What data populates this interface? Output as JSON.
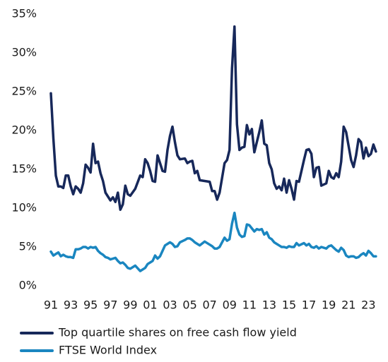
{
  "chart_data": {
    "type": "line",
    "x": [
      1991.0,
      1991.25,
      1991.5,
      1991.75,
      1992.0,
      1992.25,
      1992.5,
      1992.75,
      1993.0,
      1993.25,
      1993.5,
      1993.75,
      1994.0,
      1994.25,
      1994.5,
      1994.75,
      1995.0,
      1995.25,
      1995.5,
      1995.75,
      1996.0,
      1996.25,
      1996.5,
      1996.75,
      1997.0,
      1997.25,
      1997.5,
      1997.75,
      1998.0,
      1998.25,
      1998.5,
      1998.75,
      1999.0,
      1999.5,
      2000.0,
      2000.25,
      2000.5,
      2000.75,
      2001.0,
      2001.25,
      2001.5,
      2001.75,
      2002.0,
      2002.25,
      2002.5,
      2002.75,
      2003.0,
      2003.25,
      2003.5,
      2003.75,
      2004.0,
      2004.5,
      2004.75,
      2005.0,
      2005.25,
      2005.5,
      2005.75,
      2006.0,
      2006.5,
      2007.0,
      2007.25,
      2007.5,
      2007.75,
      2008.0,
      2008.5,
      2008.75,
      2009.0,
      2009.25,
      2009.5,
      2009.75,
      2010.0,
      2010.25,
      2010.5,
      2010.75,
      2011.0,
      2011.25,
      2011.5,
      2011.75,
      2012.0,
      2012.25,
      2012.5,
      2012.75,
      2013.0,
      2013.25,
      2013.5,
      2013.75,
      2014.0,
      2014.25,
      2014.5,
      2014.75,
      2015.0,
      2015.25,
      2015.5,
      2015.75,
      2016.0,
      2016.5,
      2016.75,
      2017.0,
      2017.25,
      2017.5,
      2017.75,
      2018.0,
      2018.25,
      2018.75,
      2019.0,
      2019.25,
      2019.5,
      2019.75,
      2020.0,
      2020.25,
      2020.5,
      2020.75,
      2021.0,
      2021.25,
      2021.5,
      2021.75,
      2022.0,
      2022.25,
      2022.5,
      2022.75,
      2023.0,
      2023.25,
      2023.5,
      2023.75
    ],
    "series": [
      {
        "name": "Top quartile shares on free cash flow yield",
        "color": "#17285a",
        "values": [
          24.8,
          19,
          14.2,
          12.8,
          12.8,
          12.6,
          14.2,
          14.2,
          12.8,
          11.8,
          12.8,
          12.5,
          12.0,
          13.2,
          15.6,
          15.2,
          14.6,
          18.3,
          15.8,
          16.0,
          14.5,
          13.5,
          12.0,
          11.5,
          11.0,
          11.4,
          10.8,
          12.0,
          9.8,
          10.5,
          12.9,
          11.8,
          11.6,
          12.5,
          14.2,
          14.0,
          16.3,
          15.8,
          14.8,
          13.5,
          13.4,
          16.8,
          15.8,
          14.8,
          14.7,
          17.5,
          19.3,
          20.5,
          18.5,
          16.8,
          16.3,
          16.4,
          15.8,
          16.0,
          16.1,
          14.5,
          14.8,
          13.6,
          13.5,
          13.4,
          12.2,
          12.2,
          11.1,
          12.0,
          15.8,
          16.2,
          17.5,
          28,
          33.4,
          20.8,
          17.5,
          17.8,
          17.9,
          20.7,
          19.5,
          20.2,
          17.2,
          18.5,
          19.8,
          21.3,
          18.3,
          18.1,
          15.8,
          15.0,
          13.2,
          12.5,
          12.8,
          12.3,
          13.8,
          12.0,
          13.6,
          12.5,
          11.1,
          13.5,
          13.4,
          16.2,
          17.5,
          17.6,
          17.0,
          14.0,
          15.2,
          15.3,
          12.9,
          13.2,
          14.8,
          14.0,
          13.8,
          14.5,
          14.0,
          16.0,
          20.5,
          19.8,
          18.0,
          16.2,
          15.3,
          16.8,
          18.9,
          18.5,
          16.4,
          17.8,
          16.7,
          17.0,
          18.2,
          17.3
        ]
      },
      {
        "name": "FTSE World Index",
        "color": "#1a86c0",
        "values": [
          4.4,
          3.9,
          4.1,
          4.3,
          3.8,
          4.0,
          3.8,
          3.7,
          3.7,
          3.6,
          4.7,
          4.7,
          4.8,
          5.0,
          5.0,
          4.8,
          5.0,
          4.9,
          5.0,
          4.5,
          4.2,
          4.0,
          3.7,
          3.6,
          3.4,
          3.5,
          3.6,
          3.2,
          2.9,
          3.0,
          2.7,
          2.3,
          2.2,
          2.6,
          1.9,
          2.1,
          2.3,
          2.8,
          3.0,
          3.2,
          3.9,
          3.5,
          3.8,
          4.5,
          5.2,
          5.4,
          5.6,
          5.4,
          5.0,
          5.1,
          5.6,
          5.9,
          6.1,
          6.1,
          5.9,
          5.6,
          5.4,
          5.2,
          5.7,
          5.3,
          5.1,
          4.8,
          4.8,
          5.0,
          6.2,
          5.8,
          6.0,
          8.0,
          9.4,
          7.5,
          6.6,
          6.3,
          6.4,
          7.9,
          7.8,
          7.4,
          7.0,
          7.3,
          7.2,
          7.3,
          6.6,
          6.9,
          6.2,
          6.0,
          5.6,
          5.4,
          5.2,
          5.0,
          5.0,
          4.9,
          5.1,
          5.0,
          5.0,
          5.5,
          5.2,
          5.5,
          5.2,
          5.4,
          5.0,
          4.9,
          5.1,
          4.8,
          5.0,
          4.8,
          5.1,
          5.2,
          4.9,
          4.6,
          4.4,
          4.9,
          4.6,
          3.9,
          3.7,
          3.8,
          3.8,
          3.6,
          3.7,
          4.0,
          4.2,
          3.9,
          4.5,
          4.2,
          3.8,
          3.8
        ]
      }
    ],
    "xlim": [
      1991,
      2023.9
    ],
    "xticks": [
      {
        "value": 1991,
        "label": "91"
      },
      {
        "value": 1993,
        "label": "93"
      },
      {
        "value": 1995,
        "label": "95"
      },
      {
        "value": 1997,
        "label": "97"
      },
      {
        "value": 1999,
        "label": "99"
      },
      {
        "value": 2001,
        "label": "01"
      },
      {
        "value": 2003,
        "label": "03"
      },
      {
        "value": 2005,
        "label": "05"
      },
      {
        "value": 2007,
        "label": "07"
      },
      {
        "value": 2009,
        "label": "09"
      },
      {
        "value": 2011,
        "label": "11"
      },
      {
        "value": 2013,
        "label": "13"
      },
      {
        "value": 2015,
        "label": "15"
      },
      {
        "value": 2017,
        "label": "17"
      },
      {
        "value": 2019,
        "label": "19"
      },
      {
        "value": 2021,
        "label": "21"
      },
      {
        "value": 2023,
        "label": "23"
      }
    ],
    "ylim": [
      0,
      35
    ],
    "yticks": [
      {
        "value": 0,
        "label": "0%"
      },
      {
        "value": 5,
        "label": "5%"
      },
      {
        "value": 10,
        "label": "10%"
      },
      {
        "value": 15,
        "label": "15%"
      },
      {
        "value": 20,
        "label": "20%"
      },
      {
        "value": 25,
        "label": "25%"
      },
      {
        "value": 30,
        "label": "30%"
      },
      {
        "value": 35,
        "label": "35%"
      }
    ],
    "grid": false,
    "legend": "bottom"
  }
}
